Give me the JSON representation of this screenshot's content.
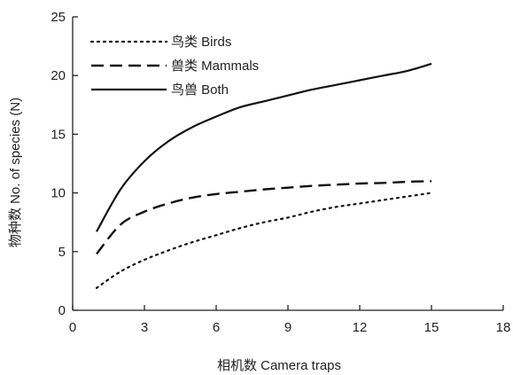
{
  "chart_data": {
    "type": "line",
    "xlabel": "相机数 Camera traps",
    "ylabel": "物种数 No. of species (N)",
    "xlim": [
      0,
      18
    ],
    "ylim": [
      0,
      25
    ],
    "xticks": [
      0,
      3,
      6,
      9,
      12,
      15,
      18
    ],
    "yticks": [
      0,
      5,
      10,
      15,
      20,
      25
    ],
    "grid": false,
    "legend_position": "top-left",
    "series": [
      {
        "name": "鸟类 Birds",
        "style": "dotted",
        "color": "#111111",
        "x": [
          1,
          2,
          3,
          4,
          5,
          6,
          7,
          8,
          9,
          10,
          11,
          12,
          13,
          14,
          15
        ],
        "y": [
          1.9,
          3.3,
          4.3,
          5.1,
          5.8,
          6.4,
          7.0,
          7.5,
          7.9,
          8.4,
          8.8,
          9.1,
          9.4,
          9.7,
          10.0
        ]
      },
      {
        "name": "兽类 Mammals",
        "style": "dashed",
        "color": "#111111",
        "x": [
          1,
          2,
          3,
          4,
          5,
          6,
          7,
          8,
          9,
          10,
          11,
          12,
          13,
          14,
          15
        ],
        "y": [
          4.8,
          7.3,
          8.4,
          9.1,
          9.6,
          9.9,
          10.1,
          10.3,
          10.45,
          10.6,
          10.7,
          10.8,
          10.85,
          10.95,
          11.0
        ]
      },
      {
        "name": "鸟兽 Both",
        "style": "solid",
        "color": "#111111",
        "x": [
          1,
          2,
          3,
          4,
          5,
          6,
          7,
          8,
          9,
          10,
          11,
          12,
          13,
          14,
          15
        ],
        "y": [
          6.7,
          10.3,
          12.7,
          14.4,
          15.6,
          16.5,
          17.3,
          17.8,
          18.3,
          18.8,
          19.2,
          19.6,
          20.0,
          20.4,
          21.0
        ]
      }
    ]
  }
}
